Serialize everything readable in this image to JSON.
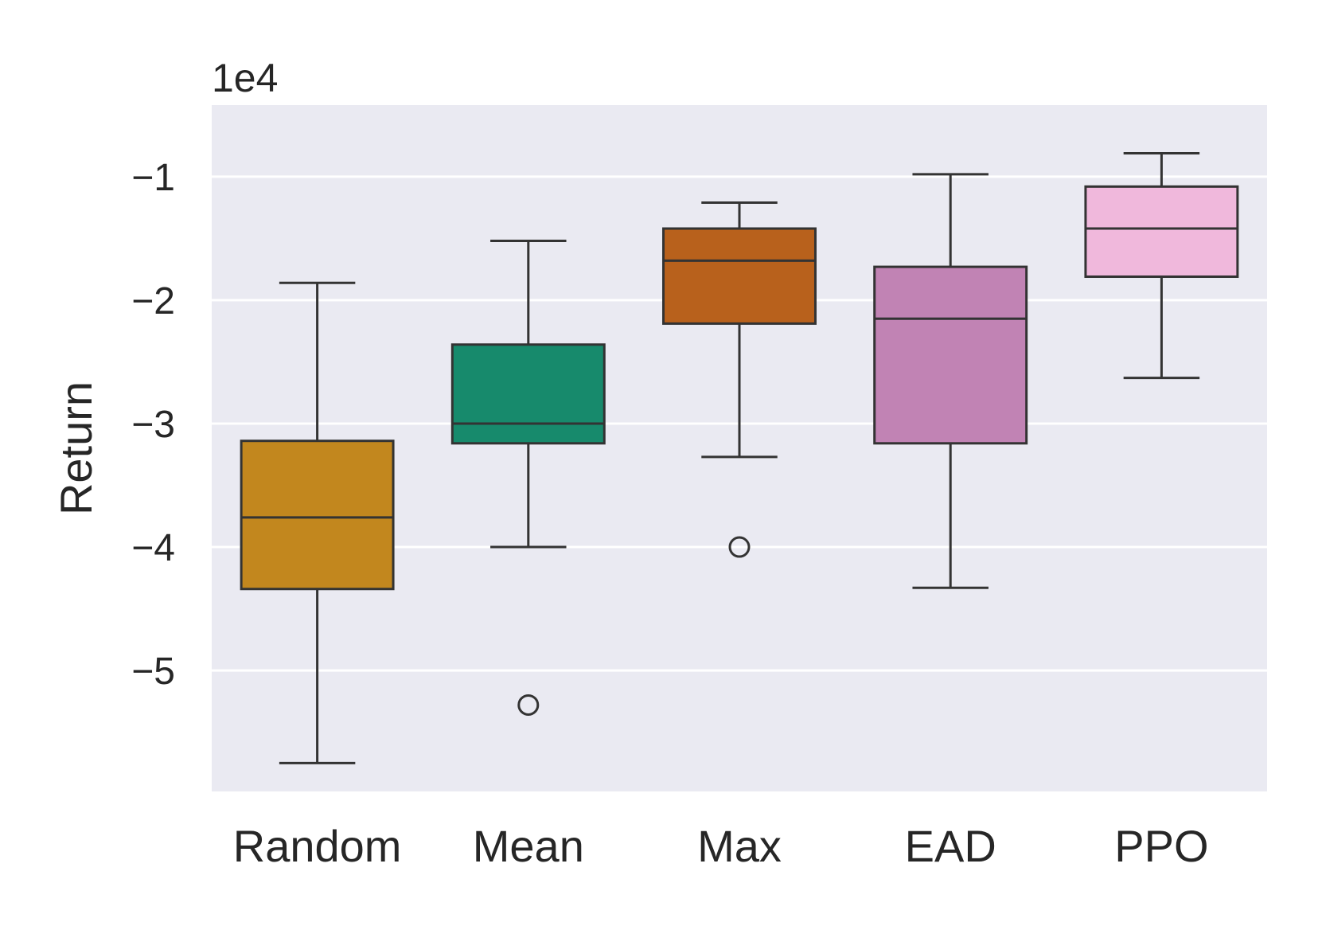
{
  "chart_data": {
    "type": "box",
    "title": "",
    "xlabel": "",
    "ylabel": "Return",
    "y_scale_label": "1e4",
    "ylim": [
      -5.98,
      -0.42
    ],
    "yticks": [
      -1,
      -2,
      -3,
      -4,
      -5
    ],
    "ytick_labels": [
      "−1",
      "−2",
      "−3",
      "−4",
      "−5"
    ],
    "grid": true,
    "categories": [
      "Random",
      "Mean",
      "Max",
      "EAD",
      "PPO"
    ],
    "colors": [
      "#c2871e",
      "#178a6c",
      "#b8611c",
      "#c183b4",
      "#f0b8dc"
    ],
    "background_color": "#eaeaf2",
    "line_color": "#333333",
    "boxes": [
      {
        "name": "Random",
        "whisker_low": -5.75,
        "q1": -4.34,
        "median": -3.76,
        "q3": -3.14,
        "whisker_high": -1.86,
        "outliers": []
      },
      {
        "name": "Mean",
        "whisker_low": -4.0,
        "q1": -3.16,
        "median": -3.0,
        "q3": -2.36,
        "whisker_high": -1.52,
        "outliers": [
          -5.28
        ]
      },
      {
        "name": "Max",
        "whisker_low": -3.27,
        "q1": -2.19,
        "median": -1.68,
        "q3": -1.42,
        "whisker_high": -1.21,
        "outliers": [
          -4.0
        ]
      },
      {
        "name": "EAD",
        "whisker_low": -4.33,
        "q1": -3.16,
        "median": -2.15,
        "q3": -1.73,
        "whisker_high": -0.98,
        "outliers": []
      },
      {
        "name": "PPO",
        "whisker_low": -2.63,
        "q1": -1.81,
        "median": -1.42,
        "q3": -1.08,
        "whisker_high": -0.81,
        "outliers": []
      }
    ]
  }
}
